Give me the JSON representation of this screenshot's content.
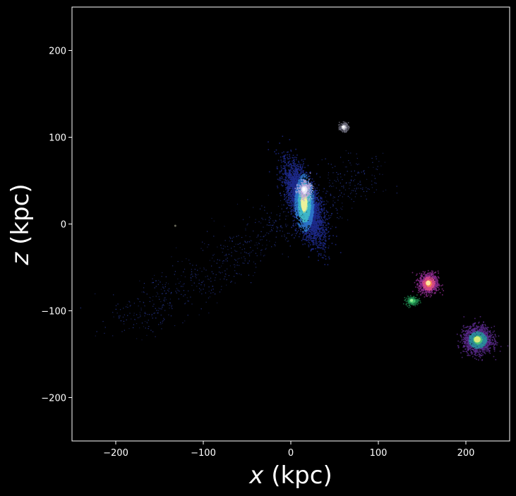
{
  "chart_data": {
    "type": "heatmap",
    "title": "",
    "xlabel_var": "x",
    "xlabel_unit": " (kpc)",
    "ylabel_var": "z",
    "ylabel_unit": " (kpc)",
    "xlim": [
      -250,
      250
    ],
    "ylim": [
      -250,
      250
    ],
    "x_ticks": [
      -200,
      -100,
      0,
      100,
      200
    ],
    "y_ticks": [
      -200,
      -100,
      0,
      100,
      200
    ],
    "x_tick_labels": [
      "−200",
      "−100",
      "0",
      "100",
      "200"
    ],
    "y_tick_labels": [
      "−200",
      "−100",
      "0",
      "100",
      "200"
    ],
    "background": "#000000",
    "grid": false,
    "structures": [
      {
        "name": "host-galaxy",
        "center": [
          15,
          25
        ],
        "extent": [
          30,
          90
        ],
        "peak_color": "#f4f39a",
        "colors": [
          "#1e2a8c",
          "#2d73c9",
          "#3fb6c9",
          "#a9e3a0"
        ]
      },
      {
        "name": "host-core",
        "center": [
          15,
          40
        ],
        "extent": [
          14,
          18
        ],
        "peak_color": "#ffffff",
        "colors": [
          "#b8a6d9",
          "#e8e4f6"
        ]
      },
      {
        "name": "satellite-upper",
        "center": [
          60,
          112
        ],
        "extent": [
          10,
          10
        ],
        "peak_color": "#ffffff",
        "colors": [
          "#6f6f80",
          "#c8c8d2"
        ]
      },
      {
        "name": "satellite-magenta",
        "center": [
          157,
          -68
        ],
        "extent": [
          22,
          24
        ],
        "peak_color": "#fff1a8",
        "colors": [
          "#8b2a8c",
          "#d44a8a",
          "#f57e56"
        ]
      },
      {
        "name": "satellite-green",
        "center": [
          138,
          -88
        ],
        "extent": [
          14,
          10
        ],
        "peak_color": "#9cf29a",
        "colors": [
          "#1b7f4a",
          "#3fc06a"
        ]
      },
      {
        "name": "satellite-lower-right",
        "center": [
          213,
          -133
        ],
        "extent": [
          32,
          30
        ],
        "peak_color": "#e8f07a",
        "colors": [
          "#5a2a8c",
          "#2d8a9c",
          "#4fc27a"
        ]
      }
    ],
    "stream_color": "#2c3ea8"
  }
}
